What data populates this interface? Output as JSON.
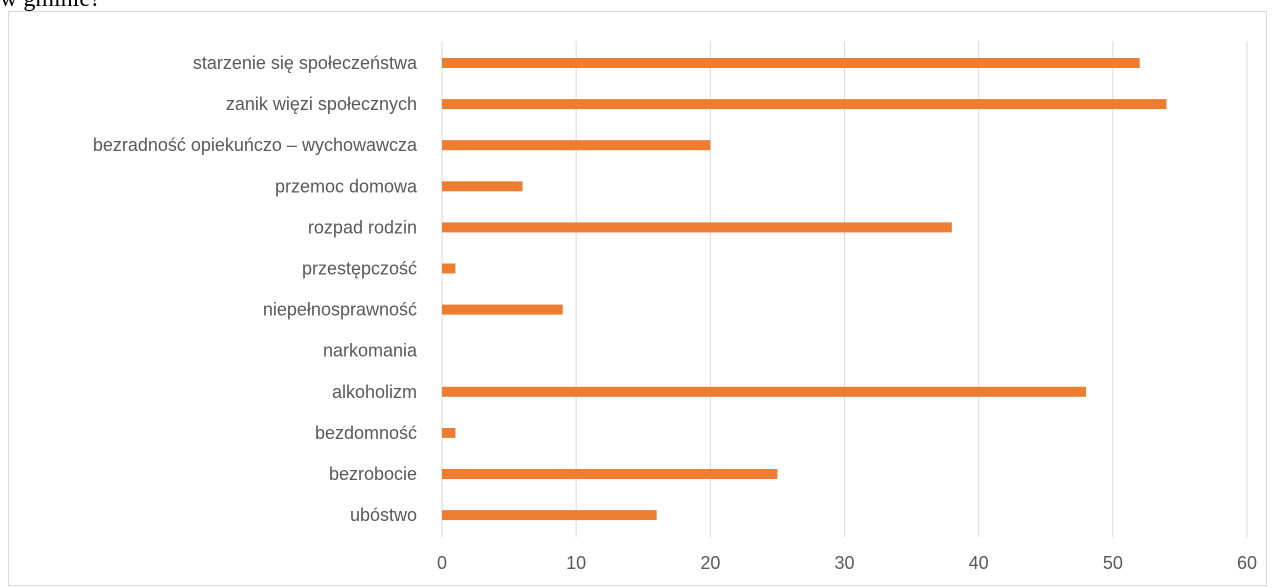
{
  "page": {
    "heading_fragment": "w gminie?"
  },
  "chart_data": {
    "type": "bar",
    "orientation": "horizontal",
    "categories": [
      "starzenie się społeczeństwa",
      "zanik więzi społecznych",
      "bezradność opiekuńczo – wychowawcza",
      "przemoc domowa",
      "rozpad rodzin",
      "przestępczość",
      "niepełnosprawność",
      "narkomania",
      "alkoholizm",
      "bezdomność",
      "bezrobocie",
      "ubóstwo"
    ],
    "values": [
      52,
      54,
      20,
      6,
      38,
      1,
      9,
      0,
      48,
      1,
      25,
      16
    ],
    "xlim": [
      0,
      60
    ],
    "x_ticks": [
      "0",
      "10",
      "20",
      "30",
      "40",
      "50",
      "60"
    ],
    "grid": "vertical",
    "colors": {
      "bar": "#ed7d31",
      "grid": "#d9d9d9",
      "text": "#595959"
    }
  }
}
